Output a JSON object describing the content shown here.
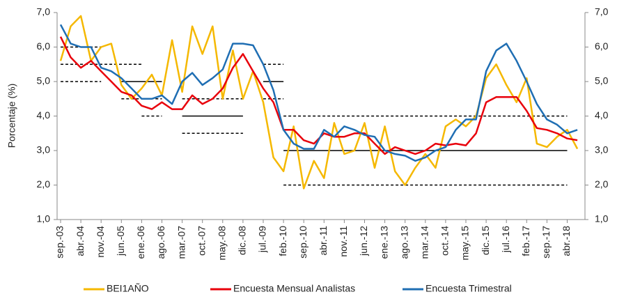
{
  "chart_data": {
    "type": "line",
    "y_label": "Porcentaje (%)",
    "categories": [
      "sep.-03",
      null,
      "abr.-04",
      null,
      "nov.-04",
      null,
      "jun.-05",
      null,
      "ene.-06",
      null,
      "ago.-06",
      null,
      "mar.-07",
      null,
      "oct.-07",
      null,
      "may.-08",
      null,
      "dic.-08",
      null,
      "jul.-09",
      null,
      "feb.-10",
      null,
      "sep.-10",
      null,
      "abr.-11",
      null,
      "nov.-11",
      null,
      "jun.-12",
      null,
      "ene.-13",
      null,
      "ago.-13",
      null,
      "mar.-14",
      null,
      "oct.-14",
      null,
      "may.-15",
      null,
      "dic.-15",
      null,
      "jul.-16",
      null,
      "feb.-17",
      null,
      "sep.-17",
      null,
      "abr.-18",
      null
    ],
    "series": [
      {
        "name": "BEI1AÑO",
        "color": "#f5b800",
        "values": [
          5.6,
          6.6,
          6.9,
          5.6,
          6.0,
          6.1,
          4.9,
          4.5,
          4.8,
          5.2,
          4.6,
          6.2,
          4.7,
          6.6,
          5.8,
          6.6,
          4.5,
          5.9,
          4.5,
          5.3,
          4.4,
          2.8,
          2.4,
          3.7,
          1.9,
          2.7,
          2.2,
          3.8,
          2.9,
          3.0,
          3.8,
          2.5,
          3.7,
          2.4,
          2.0,
          2.5,
          2.9,
          2.5,
          3.7,
          3.9,
          3.7,
          4.0,
          5.1,
          5.5,
          4.9,
          4.4,
          5.1,
          3.2,
          3.1,
          3.4,
          3.6,
          3.05
        ]
      },
      {
        "name": "Encuesta Mensual Analistas",
        "color": "#e8000b",
        "values": [
          6.3,
          5.7,
          5.4,
          5.6,
          5.3,
          5.0,
          4.7,
          4.6,
          4.3,
          4.2,
          4.4,
          4.2,
          4.2,
          4.6,
          4.35,
          4.5,
          4.8,
          5.4,
          5.8,
          5.3,
          4.8,
          4.4,
          3.6,
          3.6,
          3.3,
          3.2,
          3.5,
          3.4,
          3.4,
          3.5,
          3.5,
          3.2,
          2.9,
          3.1,
          3.0,
          2.9,
          3.0,
          3.2,
          3.15,
          3.2,
          3.15,
          3.5,
          4.4,
          4.55,
          4.55,
          4.55,
          4.15,
          3.65,
          3.6,
          3.5,
          3.35,
          3.3
        ]
      },
      {
        "name": "Encuesta Trimestral",
        "color": "#1f6eb3",
        "values": [
          6.65,
          6.1,
          6.0,
          6.0,
          5.4,
          5.3,
          5.1,
          4.8,
          4.5,
          4.5,
          4.6,
          4.35,
          5.0,
          5.25,
          4.9,
          5.1,
          5.35,
          6.1,
          6.1,
          6.05,
          5.5,
          4.75,
          3.6,
          3.2,
          3.05,
          3.05,
          3.6,
          3.4,
          3.7,
          3.6,
          3.45,
          3.4,
          3.0,
          2.9,
          2.85,
          2.7,
          2.8,
          3.0,
          3.1,
          3.6,
          3.9,
          3.9,
          5.3,
          5.9,
          6.1,
          5.6,
          5.0,
          4.35,
          3.9,
          3.75,
          3.5,
          3.6
        ]
      }
    ],
    "reference_lines": [
      {
        "value": 6.0,
        "dashed": true,
        "from": "sep.-03",
        "to": "nov.-04"
      },
      {
        "value": 5.5,
        "dashed": true,
        "from": "sep.-03",
        "to": "ene.-06"
      },
      {
        "value": 5.0,
        "dashed": true,
        "from": "sep.-03",
        "to": "nov.-04"
      },
      {
        "value": 5.0,
        "dashed": false,
        "from": "jun.-05",
        "to": "ago.-06"
      },
      {
        "value": 4.5,
        "dashed": true,
        "from": "jun.-05",
        "to": "ago.-06"
      },
      {
        "value": 4.0,
        "dashed": true,
        "from": "ene.-06",
        "to": "ago.-06"
      },
      {
        "value": 4.5,
        "dashed": true,
        "from": "mar.-07",
        "to": "dic.-08"
      },
      {
        "value": 4.0,
        "dashed": false,
        "from": "mar.-07",
        "to": "dic.-08"
      },
      {
        "value": 3.5,
        "dashed": true,
        "from": "mar.-07",
        "to": "dic.-08"
      },
      {
        "value": 5.5,
        "dashed": true,
        "from": "jul.-09",
        "to": "feb.-10"
      },
      {
        "value": 5.0,
        "dashed": false,
        "from": "jul.-09",
        "to": "feb.-10"
      },
      {
        "value": 4.5,
        "dashed": true,
        "from": "jul.-09",
        "to": "feb.-10"
      },
      {
        "value": 4.0,
        "dashed": true,
        "from": "feb.-10",
        "to": "abr.-18"
      },
      {
        "value": 3.0,
        "dashed": false,
        "from": "feb.-10",
        "to": "abr.-18"
      },
      {
        "value": 2.0,
        "dashed": true,
        "from": "feb.-10",
        "to": "abr.-18"
      }
    ],
    "ylim": [
      1,
      7
    ],
    "yticks": [
      {
        "value": 1,
        "label": "1,0"
      },
      {
        "value": 2,
        "label": "2,0"
      },
      {
        "value": 3,
        "label": "3,0"
      },
      {
        "value": 4,
        "label": "4,0"
      },
      {
        "value": 5,
        "label": "5,0"
      },
      {
        "value": 6,
        "label": "6,0"
      },
      {
        "value": 7,
        "label": "7,0"
      }
    ],
    "y2lim": [
      1,
      7
    ],
    "y2ticks": [
      {
        "value": 1,
        "label": "1,0"
      },
      {
        "value": 2,
        "label": "2,0"
      },
      {
        "value": 3,
        "label": "3,0"
      },
      {
        "value": 4,
        "label": "4,0"
      },
      {
        "value": 5,
        "label": "5,0"
      },
      {
        "value": 6,
        "label": "6,0"
      },
      {
        "value": 7,
        "label": "7,0"
      }
    ],
    "legend": "bottom"
  }
}
